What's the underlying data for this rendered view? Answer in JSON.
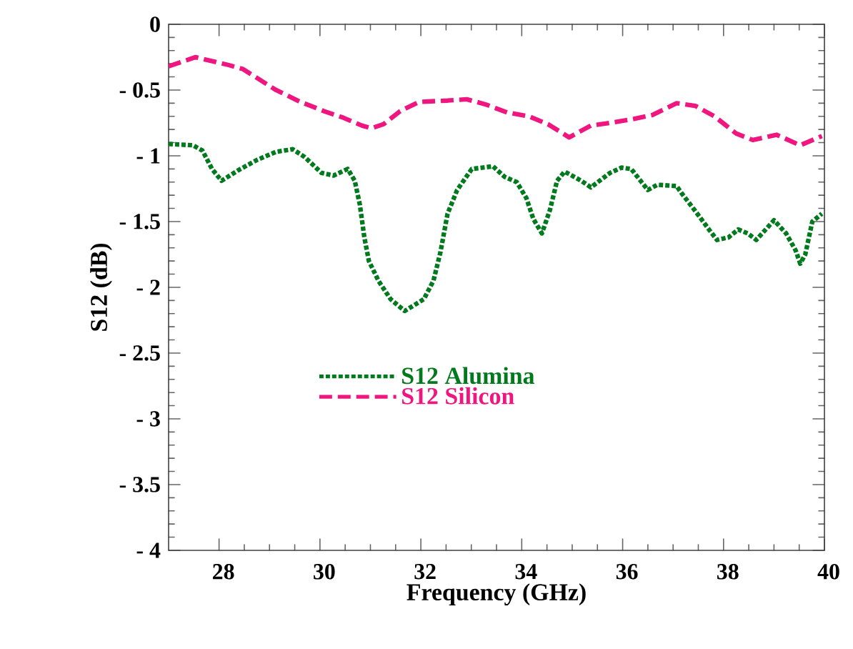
{
  "chart_data": {
    "type": "line",
    "xlabel": "Frequency  (GHz)",
    "ylabel": "S12  (dB)",
    "xlim": [
      27,
      40
    ],
    "ylim": [
      -4,
      0
    ],
    "xticks": [
      28,
      30,
      32,
      34,
      36,
      38,
      40
    ],
    "yticks": [
      {
        "value": -4,
        "label": "- 4"
      },
      {
        "value": -3.5,
        "label": "- 3.5"
      },
      {
        "value": -3,
        "label": "- 3"
      },
      {
        "value": -2.5,
        "label": "- 2.5"
      },
      {
        "value": -2,
        "label": "- 2"
      },
      {
        "value": -1.5,
        "label": "- 1.5"
      },
      {
        "value": -1,
        "label": "- 1"
      },
      {
        "value": -0.5,
        "label": "- 0.5"
      },
      0
    ],
    "grid": false,
    "legend": "center left",
    "marker": "none",
    "series": [
      {
        "name": "S12  Alumina",
        "color": "#007a1c",
        "line_style": "dotted",
        "x": [
          27.0,
          27.48,
          27.67,
          27.86,
          28.05,
          28.38,
          28.76,
          29.13,
          29.46,
          29.7,
          30.03,
          30.27,
          30.55,
          30.69,
          30.79,
          30.88,
          30.97,
          31.16,
          31.4,
          31.68,
          32.06,
          32.25,
          32.39,
          32.53,
          32.72,
          33.01,
          33.43,
          33.66,
          33.9,
          34.09,
          34.23,
          34.4,
          34.56,
          34.7,
          34.85,
          35.18,
          35.37,
          35.75,
          35.98,
          36.17,
          36.5,
          36.69,
          37.07,
          37.16,
          37.44,
          37.73,
          37.87,
          38.1,
          38.29,
          38.48,
          38.65,
          39.0,
          39.24,
          39.43,
          39.52,
          39.62,
          39.76,
          39.95
        ],
        "values": [
          -0.91,
          -0.92,
          -0.96,
          -1.1,
          -1.19,
          -1.11,
          -1.03,
          -0.97,
          -0.95,
          -1.01,
          -1.13,
          -1.15,
          -1.1,
          -1.19,
          -1.37,
          -1.62,
          -1.8,
          -1.95,
          -2.09,
          -2.18,
          -2.09,
          -1.95,
          -1.73,
          -1.44,
          -1.26,
          -1.1,
          -1.08,
          -1.16,
          -1.2,
          -1.32,
          -1.48,
          -1.59,
          -1.41,
          -1.19,
          -1.12,
          -1.19,
          -1.24,
          -1.13,
          -1.09,
          -1.1,
          -1.26,
          -1.22,
          -1.23,
          -1.28,
          -1.42,
          -1.57,
          -1.64,
          -1.62,
          -1.56,
          -1.59,
          -1.64,
          -1.49,
          -1.59,
          -1.72,
          -1.82,
          -1.75,
          -1.5,
          -1.44
        ]
      },
      {
        "name": "S12  Silicon",
        "color": "#f0167f",
        "line_style": "dashed",
        "x": [
          27.0,
          27.53,
          28.19,
          28.47,
          28.76,
          29.13,
          29.61,
          30.08,
          30.46,
          30.83,
          31.02,
          31.26,
          31.59,
          31.97,
          32.53,
          32.91,
          33.29,
          33.71,
          34.14,
          34.52,
          34.94,
          35.37,
          35.75,
          36.22,
          36.59,
          37.07,
          37.44,
          37.82,
          38.25,
          38.58,
          39.05,
          39.52,
          39.95
        ],
        "values": [
          -0.32,
          -0.25,
          -0.31,
          -0.34,
          -0.41,
          -0.5,
          -0.59,
          -0.66,
          -0.71,
          -0.77,
          -0.79,
          -0.76,
          -0.66,
          -0.59,
          -0.58,
          -0.57,
          -0.61,
          -0.67,
          -0.7,
          -0.76,
          -0.86,
          -0.77,
          -0.75,
          -0.72,
          -0.69,
          -0.6,
          -0.62,
          -0.7,
          -0.83,
          -0.88,
          -0.84,
          -0.92,
          -0.85
        ]
      }
    ]
  }
}
